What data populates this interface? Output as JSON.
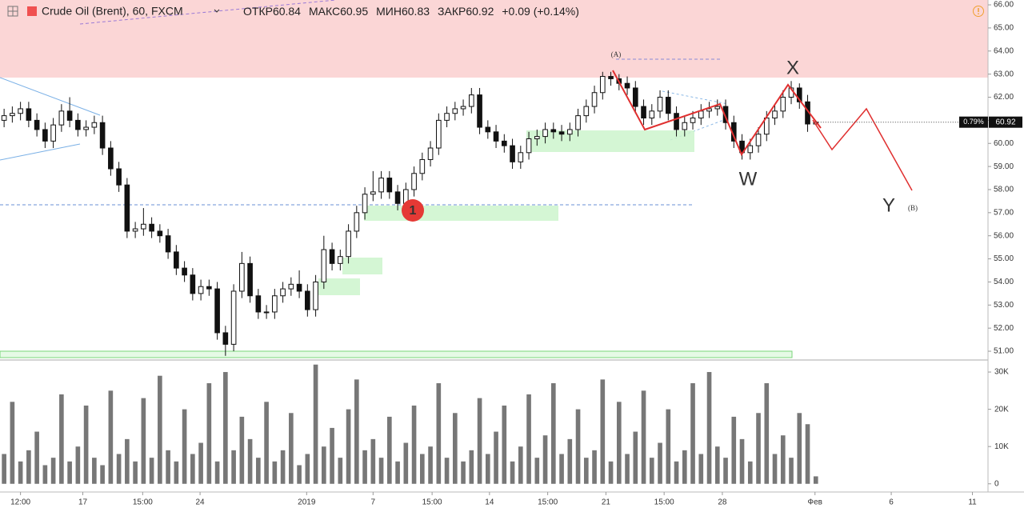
{
  "header": {
    "symbol": "Crude Oil (Brent), 60, FXCM",
    "open_label": "ОТКР",
    "open": 60.84,
    "high_label": "МАКС",
    "high": 60.95,
    "low_label": "МИН",
    "low": 60.83,
    "close_label": "ЗАКР",
    "close": 60.92,
    "change": "+0.09 (+0.14%)"
  },
  "annotations": {
    "wave_w": "W",
    "wave_x": "X",
    "wave_y": "Y",
    "wave_a": "(A)",
    "wave_b": "(B)",
    "marker": "1",
    "last_change": "0.79%"
  },
  "chart_data": {
    "type": "candlestick",
    "color": "#111111",
    "volume_color": "#777777",
    "x": [
      0,
      1,
      2,
      3,
      4,
      5,
      6,
      7,
      8,
      9,
      10,
      11,
      12,
      13,
      14,
      15,
      16,
      17,
      18,
      19,
      20,
      21,
      22,
      23,
      24,
      25,
      26,
      27,
      28,
      29,
      30,
      31,
      32,
      33,
      34,
      35,
      36,
      37,
      38,
      39,
      40,
      41,
      42,
      43,
      44,
      45,
      46,
      47,
      48,
      49,
      50,
      51,
      52,
      53,
      54,
      55,
      56,
      57,
      58,
      59,
      60,
      61,
      62,
      63,
      64,
      65,
      66,
      67,
      68,
      69,
      70,
      71,
      72,
      73,
      74,
      75,
      76,
      77,
      78,
      79,
      80,
      81,
      82,
      83,
      84,
      85,
      86,
      87,
      88,
      89,
      90,
      91,
      92,
      93,
      94,
      95,
      96,
      97,
      98,
      99
    ],
    "open": [
      61.0,
      61.2,
      61.3,
      61.5,
      61.0,
      60.6,
      60.1,
      60.8,
      61.4,
      61.0,
      60.6,
      60.7,
      60.9,
      59.8,
      58.9,
      58.2,
      56.2,
      56.3,
      56.5,
      56.2,
      56.0,
      55.3,
      54.6,
      54.3,
      53.5,
      53.8,
      53.7,
      51.8,
      51.3,
      53.6,
      54.8,
      53.4,
      52.7,
      52.7,
      53.4,
      53.7,
      53.9,
      53.6,
      52.8,
      54.0,
      55.4,
      54.8,
      55.1,
      56.2,
      57.0,
      57.8,
      57.9,
      58.5,
      57.9,
      57.4,
      58.0,
      58.7,
      59.3,
      59.8,
      61.0,
      61.3,
      61.5,
      61.6,
      62.1,
      60.7,
      60.5,
      60.1,
      59.9,
      59.2,
      59.6,
      60.2,
      60.3,
      60.6,
      60.5,
      60.4,
      60.6,
      61.2,
      61.6,
      62.2,
      62.9,
      62.8,
      62.6,
      62.4,
      61.6,
      61.1,
      61.4,
      62.0,
      61.3,
      60.6,
      60.9,
      61.1,
      61.4,
      61.5,
      61.6,
      60.9,
      60.1,
      59.6,
      59.9,
      60.4,
      61.1,
      61.4,
      62.0,
      62.4,
      61.8,
      60.84
    ],
    "high": [
      61.5,
      61.6,
      61.8,
      61.8,
      61.3,
      60.9,
      61.1,
      61.7,
      62.0,
      61.3,
      61.0,
      61.2,
      61.2,
      60.1,
      59.2,
      58.5,
      56.6,
      57.2,
      56.8,
      56.5,
      56.3,
      55.6,
      54.9,
      54.6,
      54.1,
      54.1,
      54.0,
      52.1,
      53.9,
      55.3,
      55.1,
      53.7,
      53.0,
      53.7,
      54.0,
      54.2,
      54.5,
      53.9,
      54.3,
      56.0,
      55.7,
      55.4,
      56.5,
      57.3,
      58.1,
      58.8,
      58.8,
      58.8,
      58.2,
      58.3,
      59.0,
      59.6,
      60.1,
      61.3,
      61.6,
      61.8,
      61.9,
      62.4,
      62.4,
      61.0,
      60.8,
      60.4,
      60.2,
      59.9,
      60.5,
      60.6,
      60.9,
      60.9,
      60.8,
      60.9,
      61.5,
      61.9,
      62.5,
      63.1,
      63.1,
      63.0,
      62.9,
      62.7,
      61.9,
      61.7,
      62.3,
      62.3,
      61.6,
      61.2,
      61.4,
      61.7,
      61.8,
      61.9,
      61.9,
      61.2,
      60.4,
      60.2,
      60.7,
      61.4,
      61.7,
      62.3,
      62.7,
      62.6,
      62.1,
      60.95
    ],
    "low": [
      60.7,
      60.9,
      61.0,
      60.7,
      60.3,
      59.8,
      59.8,
      60.5,
      60.7,
      60.3,
      60.3,
      60.4,
      59.5,
      58.6,
      57.9,
      55.9,
      55.9,
      56.0,
      55.9,
      55.7,
      55.0,
      54.3,
      54.0,
      53.2,
      53.2,
      53.4,
      51.5,
      50.8,
      51.0,
      53.3,
      53.1,
      52.4,
      52.4,
      52.4,
      53.1,
      53.4,
      53.3,
      52.5,
      52.5,
      53.7,
      54.5,
      54.5,
      54.8,
      55.9,
      56.7,
      57.5,
      57.6,
      57.6,
      57.1,
      57.1,
      57.7,
      58.4,
      59.0,
      59.5,
      60.7,
      61.0,
      61.2,
      61.3,
      60.4,
      60.2,
      59.8,
      59.6,
      58.9,
      58.9,
      59.3,
      59.9,
      60.0,
      60.2,
      60.1,
      60.1,
      60.3,
      60.9,
      61.3,
      61.9,
      62.5,
      62.3,
      62.1,
      61.3,
      60.8,
      60.8,
      61.1,
      61.0,
      60.3,
      60.3,
      60.6,
      60.8,
      61.1,
      61.2,
      60.6,
      59.8,
      59.3,
      59.3,
      59.6,
      60.1,
      60.8,
      61.1,
      61.7,
      61.5,
      60.5,
      60.83
    ],
    "close": [
      61.2,
      61.3,
      61.5,
      61.0,
      60.6,
      60.1,
      60.8,
      61.4,
      61.0,
      60.6,
      60.7,
      60.9,
      59.8,
      58.9,
      58.2,
      56.2,
      56.3,
      56.5,
      56.2,
      56.0,
      55.3,
      54.6,
      54.3,
      53.5,
      53.8,
      53.7,
      51.8,
      51.3,
      53.6,
      54.8,
      53.4,
      52.7,
      52.7,
      53.4,
      53.7,
      53.9,
      53.6,
      52.8,
      54.0,
      55.4,
      54.8,
      55.1,
      56.2,
      57.0,
      57.8,
      57.9,
      58.5,
      57.9,
      57.4,
      58.0,
      58.7,
      59.3,
      59.8,
      61.0,
      61.3,
      61.5,
      61.6,
      62.1,
      60.7,
      60.5,
      60.1,
      59.9,
      59.2,
      59.6,
      60.2,
      60.3,
      60.6,
      60.5,
      60.4,
      60.6,
      61.2,
      61.6,
      62.2,
      62.9,
      62.8,
      62.6,
      62.4,
      61.6,
      61.1,
      61.4,
      62.0,
      61.3,
      60.6,
      60.9,
      61.1,
      61.4,
      61.5,
      61.6,
      60.9,
      60.1,
      59.6,
      59.9,
      60.4,
      61.1,
      61.4,
      62.0,
      62.4,
      61.8,
      60.84,
      60.92
    ],
    "volume": [
      8000,
      22000,
      6000,
      9000,
      14000,
      5000,
      7000,
      24000,
      6000,
      10000,
      21000,
      7000,
      5000,
      25000,
      8000,
      12000,
      6000,
      23000,
      7000,
      29000,
      9000,
      6000,
      20000,
      8000,
      11000,
      27000,
      6000,
      30000,
      9000,
      18000,
      12000,
      7000,
      22000,
      6000,
      9000,
      19000,
      5000,
      8000,
      32000,
      10000,
      15000,
      7000,
      20000,
      28000,
      9000,
      12000,
      7000,
      18000,
      6000,
      11000,
      21000,
      8000,
      10000,
      27000,
      7000,
      19000,
      6000,
      9000,
      23000,
      8000,
      14000,
      21000,
      6000,
      10000,
      24000,
      7000,
      13000,
      27000,
      8000,
      12000,
      20000,
      7000,
      9000,
      28000,
      6000,
      22000,
      8000,
      14000,
      25000,
      7000,
      11000,
      20000,
      6000,
      9000,
      27000,
      8000,
      30000,
      10000,
      7000,
      18000,
      12000,
      6000,
      19000,
      27000,
      8000,
      13000,
      7000,
      19000,
      16000,
      2000
    ],
    "xlim": [
      -0.5,
      120
    ],
    "xticks": [
      {
        "value": 2.0,
        "label": "12:00"
      },
      {
        "value": 9.6,
        "label": "17"
      },
      {
        "value": 16.9,
        "label": "15:00"
      },
      {
        "value": 23.9,
        "label": "24"
      },
      {
        "value": 36.9,
        "label": "2019"
      },
      {
        "value": 45.0,
        "label": "7"
      },
      {
        "value": 52.2,
        "label": "15:00"
      },
      {
        "value": 59.2,
        "label": "14"
      },
      {
        "value": 66.3,
        "label": "15:00"
      },
      {
        "value": 73.4,
        "label": "21"
      },
      {
        "value": 80.5,
        "label": "15:00"
      },
      {
        "value": 87.6,
        "label": "28"
      },
      {
        "value": 98.9,
        "label": "Фев"
      },
      {
        "value": 108.2,
        "label": "6"
      },
      {
        "value": 118.1,
        "label": "11"
      }
    ],
    "ylim": [
      50.62,
      66.21
    ],
    "yticks": [
      {
        "value": 51,
        "label": "51.00"
      },
      {
        "value": 52,
        "label": "52.00"
      },
      {
        "value": 53,
        "label": "53.00"
      },
      {
        "value": 54,
        "label": "54.00"
      },
      {
        "value": 55,
        "label": "55.00"
      },
      {
        "value": 56,
        "label": "56.00"
      },
      {
        "value": 57,
        "label": "57.00"
      },
      {
        "value": 58,
        "label": "58.00"
      },
      {
        "value": 59,
        "label": "59.00"
      },
      {
        "value": 60,
        "label": "60.00"
      },
      {
        "value": 61,
        "label": "61.00"
      },
      {
        "value": 62,
        "label": "62.00"
      },
      {
        "value": 63,
        "label": "63.00"
      },
      {
        "value": 64,
        "label": "64.00"
      },
      {
        "value": 65,
        "label": "65.00"
      },
      {
        "value": 66,
        "label": "66.00"
      }
    ],
    "volume_ylim": [
      -2200,
      32800
    ],
    "volume_yticks": [
      0,
      {
        "value": 10000,
        "label": "10K"
      },
      {
        "value": 20000,
        "label": "20K"
      },
      {
        "value": 30000,
        "label": "30K"
      }
    ]
  }
}
